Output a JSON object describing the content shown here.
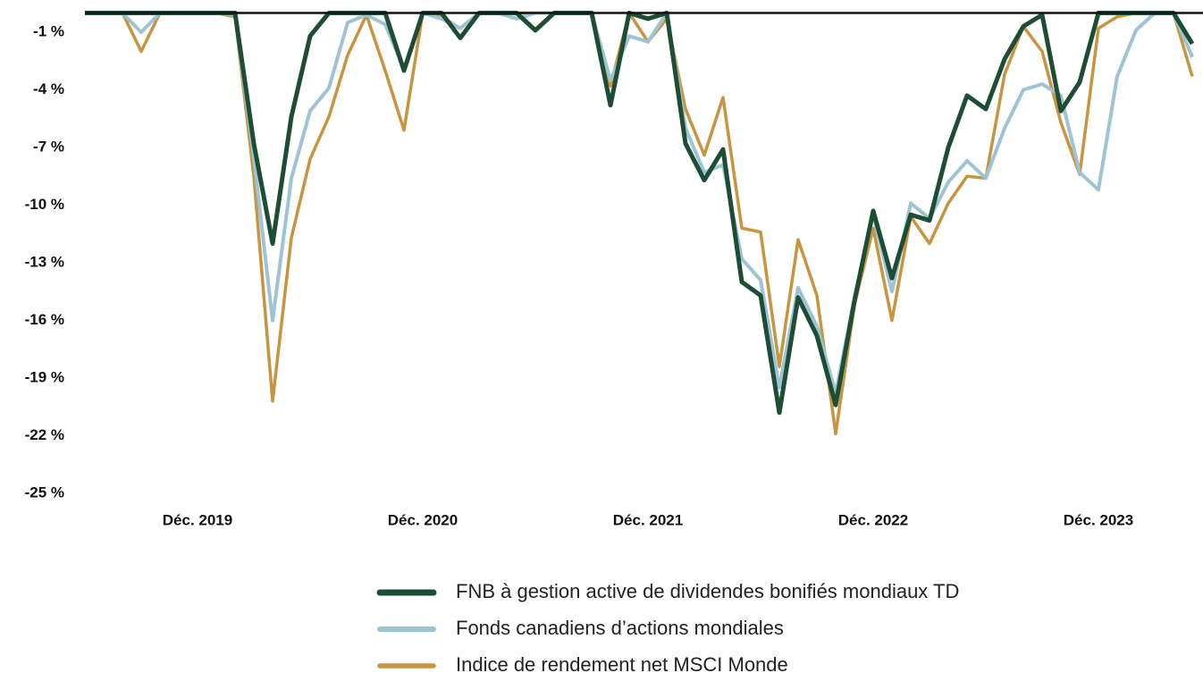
{
  "chart_data": {
    "type": "line",
    "categories": [
      null,
      null,
      null,
      null,
      null,
      null,
      "Déc. 2019",
      null,
      null,
      null,
      null,
      null,
      null,
      null,
      null,
      null,
      null,
      null,
      "Déc. 2020",
      null,
      null,
      null,
      null,
      null,
      null,
      null,
      null,
      null,
      null,
      null,
      "Déc. 2021",
      null,
      null,
      null,
      null,
      null,
      null,
      null,
      null,
      null,
      null,
      null,
      "Déc. 2022",
      null,
      null,
      null,
      null,
      null,
      null,
      null,
      null,
      null,
      null,
      null,
      "Déc. 2023",
      null,
      null,
      null,
      null,
      null
    ],
    "series": [
      {
        "name": "FNB à gestion active de dividendes bonifiés mondiaux TD",
        "color": "#1d4d34",
        "values": [
          0,
          0,
          0,
          0,
          0,
          0,
          0,
          0,
          0,
          -6.8,
          -12,
          -5.4,
          -1.2,
          0,
          0,
          0,
          0,
          -3,
          0,
          0,
          -1.3,
          0,
          0,
          0,
          -0.9,
          0,
          0,
          0,
          -4.8,
          0,
          -0.3,
          0,
          -6.8,
          -8.7,
          -7.1,
          -14,
          -14.7,
          -20.8,
          -14.8,
          -16.8,
          -20.4,
          -15,
          -10.3,
          -13.8,
          -10.5,
          -10.8,
          -7,
          -4.3,
          -5,
          -2.4,
          -0.7,
          -0.1,
          -5.1,
          -3.6,
          0,
          0,
          0,
          0,
          0,
          -1.6
        ]
      },
      {
        "name": "Fonds canadiens d’actions mondiales",
        "color": "#9dc3d5",
        "values": [
          0,
          0,
          0,
          -1,
          0,
          0,
          0,
          0,
          -0.1,
          -7.5,
          -16,
          -8.6,
          -5.1,
          -3.9,
          -0.5,
          -0.1,
          -0.6,
          -2.9,
          0,
          -0.3,
          -0.8,
          0,
          0,
          -0.3,
          0,
          0,
          0,
          0,
          -3.5,
          -1.2,
          -1.5,
          0,
          -6,
          -8.3,
          -7.9,
          -12.8,
          -13.9,
          -19.5,
          -14.3,
          -16.3,
          -19.8,
          -14.8,
          -10.5,
          -14.5,
          -9.9,
          -10.7,
          -8.8,
          -7.7,
          -8.6,
          -6,
          -4,
          -3.7,
          -4.3,
          -8.3,
          -9.2,
          -3.3,
          -0.9,
          0,
          0,
          -2.3
        ]
      },
      {
        "name": "Indice de rendement net MSCI Monde",
        "color": "#c8943f",
        "values": [
          0,
          0,
          0,
          -2,
          0,
          0,
          0,
          0,
          -0.2,
          -8.5,
          -20.2,
          -11.7,
          -7.6,
          -5.4,
          -2.2,
          -0.1,
          -3,
          -6.1,
          0,
          -0.2,
          -0.8,
          0,
          0,
          0,
          0,
          0,
          0,
          0,
          -3.8,
          0,
          -1.5,
          -0.3,
          -5,
          -7.4,
          -4.4,
          -11.2,
          -11.4,
          -18.4,
          -11.8,
          -14.7,
          -21.9,
          -15.2,
          -11.2,
          -16,
          -10.6,
          -12,
          -9.9,
          -8.5,
          -8.6,
          -3.2,
          -0.7,
          -2,
          -5.7,
          -8.4,
          -0.8,
          -0.2,
          0,
          0,
          0,
          -3.3
        ]
      }
    ],
    "ylim": [
      -25,
      0
    ],
    "yticks": [
      {
        "value": -1,
        "label": "-1 %"
      },
      {
        "value": -4,
        "label": "-4 %"
      },
      {
        "value": -7,
        "label": "-7 %"
      },
      {
        "value": -10,
        "label": "-10 %"
      },
      {
        "value": -13,
        "label": "-13 %"
      },
      {
        "value": -16,
        "label": "-16 %"
      },
      {
        "value": -19,
        "label": "-19 %"
      },
      {
        "value": -22,
        "label": "-22 %"
      },
      {
        "value": -25,
        "label": "-25 %"
      }
    ],
    "grid": false
  }
}
